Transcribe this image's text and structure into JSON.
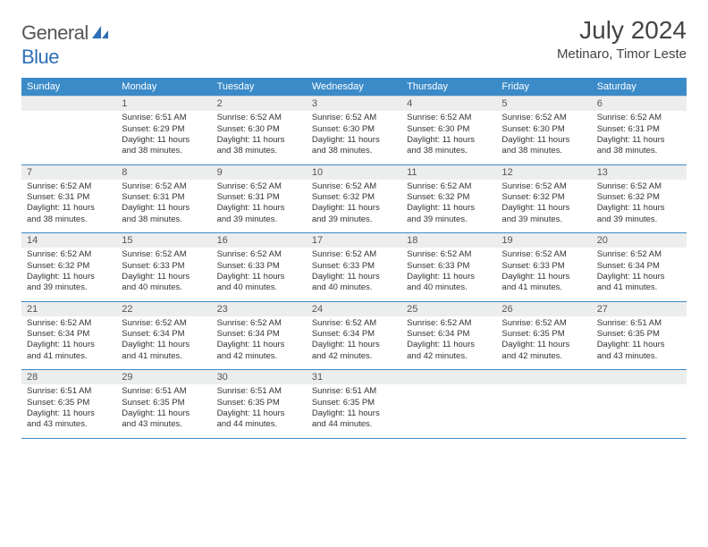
{
  "logo": {
    "word1": "General",
    "word2": "Blue"
  },
  "title": "July 2024",
  "location": "Metinaro, Timor Leste",
  "colors": {
    "header_bg": "#3b8bc9",
    "header_text": "#ffffff",
    "daynum_bg": "#eceded",
    "border_accent": "#3b8bc9",
    "logo_gray": "#555555",
    "logo_blue": "#2d6fb5"
  },
  "weekdays": [
    "Sunday",
    "Monday",
    "Tuesday",
    "Wednesday",
    "Thursday",
    "Friday",
    "Saturday"
  ],
  "weeks": [
    {
      "nums": [
        "",
        "1",
        "2",
        "3",
        "4",
        "5",
        "6"
      ],
      "cells": [
        null,
        {
          "sr": "Sunrise: 6:51 AM",
          "ss": "Sunset: 6:29 PM",
          "d1": "Daylight: 11 hours",
          "d2": "and 38 minutes."
        },
        {
          "sr": "Sunrise: 6:52 AM",
          "ss": "Sunset: 6:30 PM",
          "d1": "Daylight: 11 hours",
          "d2": "and 38 minutes."
        },
        {
          "sr": "Sunrise: 6:52 AM",
          "ss": "Sunset: 6:30 PM",
          "d1": "Daylight: 11 hours",
          "d2": "and 38 minutes."
        },
        {
          "sr": "Sunrise: 6:52 AM",
          "ss": "Sunset: 6:30 PM",
          "d1": "Daylight: 11 hours",
          "d2": "and 38 minutes."
        },
        {
          "sr": "Sunrise: 6:52 AM",
          "ss": "Sunset: 6:30 PM",
          "d1": "Daylight: 11 hours",
          "d2": "and 38 minutes."
        },
        {
          "sr": "Sunrise: 6:52 AM",
          "ss": "Sunset: 6:31 PM",
          "d1": "Daylight: 11 hours",
          "d2": "and 38 minutes."
        }
      ]
    },
    {
      "nums": [
        "7",
        "8",
        "9",
        "10",
        "11",
        "12",
        "13"
      ],
      "cells": [
        {
          "sr": "Sunrise: 6:52 AM",
          "ss": "Sunset: 6:31 PM",
          "d1": "Daylight: 11 hours",
          "d2": "and 38 minutes."
        },
        {
          "sr": "Sunrise: 6:52 AM",
          "ss": "Sunset: 6:31 PM",
          "d1": "Daylight: 11 hours",
          "d2": "and 38 minutes."
        },
        {
          "sr": "Sunrise: 6:52 AM",
          "ss": "Sunset: 6:31 PM",
          "d1": "Daylight: 11 hours",
          "d2": "and 39 minutes."
        },
        {
          "sr": "Sunrise: 6:52 AM",
          "ss": "Sunset: 6:32 PM",
          "d1": "Daylight: 11 hours",
          "d2": "and 39 minutes."
        },
        {
          "sr": "Sunrise: 6:52 AM",
          "ss": "Sunset: 6:32 PM",
          "d1": "Daylight: 11 hours",
          "d2": "and 39 minutes."
        },
        {
          "sr": "Sunrise: 6:52 AM",
          "ss": "Sunset: 6:32 PM",
          "d1": "Daylight: 11 hours",
          "d2": "and 39 minutes."
        },
        {
          "sr": "Sunrise: 6:52 AM",
          "ss": "Sunset: 6:32 PM",
          "d1": "Daylight: 11 hours",
          "d2": "and 39 minutes."
        }
      ]
    },
    {
      "nums": [
        "14",
        "15",
        "16",
        "17",
        "18",
        "19",
        "20"
      ],
      "cells": [
        {
          "sr": "Sunrise: 6:52 AM",
          "ss": "Sunset: 6:32 PM",
          "d1": "Daylight: 11 hours",
          "d2": "and 39 minutes."
        },
        {
          "sr": "Sunrise: 6:52 AM",
          "ss": "Sunset: 6:33 PM",
          "d1": "Daylight: 11 hours",
          "d2": "and 40 minutes."
        },
        {
          "sr": "Sunrise: 6:52 AM",
          "ss": "Sunset: 6:33 PM",
          "d1": "Daylight: 11 hours",
          "d2": "and 40 minutes."
        },
        {
          "sr": "Sunrise: 6:52 AM",
          "ss": "Sunset: 6:33 PM",
          "d1": "Daylight: 11 hours",
          "d2": "and 40 minutes."
        },
        {
          "sr": "Sunrise: 6:52 AM",
          "ss": "Sunset: 6:33 PM",
          "d1": "Daylight: 11 hours",
          "d2": "and 40 minutes."
        },
        {
          "sr": "Sunrise: 6:52 AM",
          "ss": "Sunset: 6:33 PM",
          "d1": "Daylight: 11 hours",
          "d2": "and 41 minutes."
        },
        {
          "sr": "Sunrise: 6:52 AM",
          "ss": "Sunset: 6:34 PM",
          "d1": "Daylight: 11 hours",
          "d2": "and 41 minutes."
        }
      ]
    },
    {
      "nums": [
        "21",
        "22",
        "23",
        "24",
        "25",
        "26",
        "27"
      ],
      "cells": [
        {
          "sr": "Sunrise: 6:52 AM",
          "ss": "Sunset: 6:34 PM",
          "d1": "Daylight: 11 hours",
          "d2": "and 41 minutes."
        },
        {
          "sr": "Sunrise: 6:52 AM",
          "ss": "Sunset: 6:34 PM",
          "d1": "Daylight: 11 hours",
          "d2": "and 41 minutes."
        },
        {
          "sr": "Sunrise: 6:52 AM",
          "ss": "Sunset: 6:34 PM",
          "d1": "Daylight: 11 hours",
          "d2": "and 42 minutes."
        },
        {
          "sr": "Sunrise: 6:52 AM",
          "ss": "Sunset: 6:34 PM",
          "d1": "Daylight: 11 hours",
          "d2": "and 42 minutes."
        },
        {
          "sr": "Sunrise: 6:52 AM",
          "ss": "Sunset: 6:34 PM",
          "d1": "Daylight: 11 hours",
          "d2": "and 42 minutes."
        },
        {
          "sr": "Sunrise: 6:52 AM",
          "ss": "Sunset: 6:35 PM",
          "d1": "Daylight: 11 hours",
          "d2": "and 42 minutes."
        },
        {
          "sr": "Sunrise: 6:51 AM",
          "ss": "Sunset: 6:35 PM",
          "d1": "Daylight: 11 hours",
          "d2": "and 43 minutes."
        }
      ]
    },
    {
      "nums": [
        "28",
        "29",
        "30",
        "31",
        "",
        "",
        ""
      ],
      "cells": [
        {
          "sr": "Sunrise: 6:51 AM",
          "ss": "Sunset: 6:35 PM",
          "d1": "Daylight: 11 hours",
          "d2": "and 43 minutes."
        },
        {
          "sr": "Sunrise: 6:51 AM",
          "ss": "Sunset: 6:35 PM",
          "d1": "Daylight: 11 hours",
          "d2": "and 43 minutes."
        },
        {
          "sr": "Sunrise: 6:51 AM",
          "ss": "Sunset: 6:35 PM",
          "d1": "Daylight: 11 hours",
          "d2": "and 44 minutes."
        },
        {
          "sr": "Sunrise: 6:51 AM",
          "ss": "Sunset: 6:35 PM",
          "d1": "Daylight: 11 hours",
          "d2": "and 44 minutes."
        },
        null,
        null,
        null
      ]
    }
  ]
}
